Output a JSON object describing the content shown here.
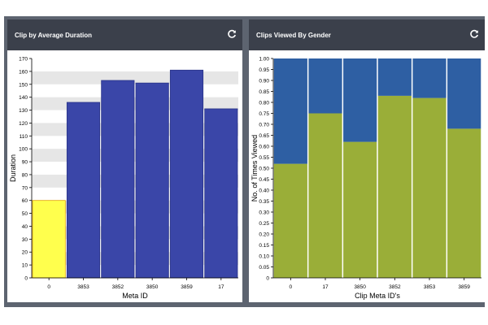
{
  "panels": [
    {
      "title": "Clip by Average Duration",
      "refresh_icon": "refresh-icon"
    },
    {
      "title": "Clips Viewed By Gender",
      "refresh_icon": "refresh-icon"
    }
  ],
  "chart_data": [
    {
      "type": "bar",
      "categories": [
        "0",
        "3853",
        "3852",
        "3850",
        "3859",
        "17"
      ],
      "values": [
        60,
        136,
        153,
        151,
        161,
        131
      ],
      "xlabel": "Meta ID",
      "ylabel": "Duration",
      "ylim": [
        0,
        170
      ],
      "yticks": [
        0,
        10,
        20,
        30,
        40,
        50,
        60,
        70,
        80,
        90,
        100,
        110,
        120,
        130,
        140,
        150,
        160,
        170
      ],
      "highlighted_category": "0",
      "colors": {
        "bar": "#3a46a8",
        "highlight": "#ffff4d",
        "band": "#e6e6e6"
      }
    },
    {
      "type": "bar",
      "stacked": true,
      "categories": [
        "0",
        "17",
        "3850",
        "3852",
        "3853",
        "3859"
      ],
      "series": [
        {
          "values": [
            0.52,
            0.75,
            0.62,
            0.83,
            0.82,
            0.68
          ],
          "color": "#9aae38"
        },
        {
          "values": [
            0.48,
            0.25,
            0.38,
            0.17,
            0.18,
            0.32
          ],
          "color": "#2e5fa3"
        }
      ],
      "xlabel": "Clip Meta ID's",
      "ylabel": "No. of Times Viewed",
      "ylim": [
        0,
        1
      ],
      "yticks": [
        "0",
        "0.05",
        "0.10",
        "0.15",
        "0.20",
        "0.25",
        "0.30",
        "0.35",
        "0.40",
        "0.45",
        "0.50",
        "0.55",
        "0.60",
        "0.65",
        "0.70",
        "0.75",
        "0.80",
        "0.85",
        "0.90",
        "0.95",
        "1.00"
      ]
    }
  ]
}
